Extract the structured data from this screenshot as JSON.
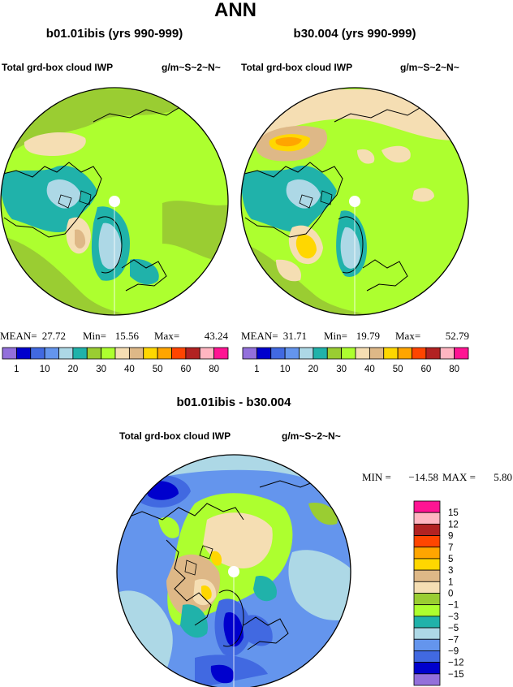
{
  "figure_title": "ANN",
  "chart_data": [
    {
      "type": "heatmap",
      "projection": "north polar stereographic",
      "title": "b01.01ibis (yrs 990-999)",
      "variable": "Total grd-box cloud IWP",
      "units": "g/m~S~2~N~",
      "stats": {
        "mean_label": "MEAN=",
        "mean": "27.72",
        "min_label": "Min=",
        "min": "15.56",
        "max_label": "Max=",
        "max": "43.24"
      },
      "contour_levels": [
        1,
        5,
        10,
        15,
        20,
        25,
        30,
        35,
        40,
        45,
        50,
        55,
        60,
        70,
        80
      ],
      "colorbar_tick_labels": [
        "1",
        "10",
        "20",
        "30",
        "40",
        "50",
        "60",
        "80"
      ],
      "colorbar_colors": [
        "#9370db",
        "#0000cd",
        "#4169e1",
        "#6495ed",
        "#add8e6",
        "#20b2aa",
        "#9acd32",
        "#adff2f",
        "#f5deb3",
        "#deb887",
        "#ffd700",
        "#ffa500",
        "#ff4500",
        "#b22222",
        "#ffb6c1",
        "#ff1493"
      ]
    },
    {
      "type": "heatmap",
      "projection": "north polar stereographic",
      "title": "b30.004 (yrs 990-999)",
      "variable": "Total grd-box cloud IWP",
      "units": "g/m~S~2~N~",
      "stats": {
        "mean_label": "MEAN=",
        "mean": "31.71",
        "min_label": "Min=",
        "min": "19.79",
        "max_label": "Max=",
        "max": "52.79"
      },
      "contour_levels": [
        1,
        5,
        10,
        15,
        20,
        25,
        30,
        35,
        40,
        45,
        50,
        55,
        60,
        70,
        80
      ],
      "colorbar_tick_labels": [
        "1",
        "10",
        "20",
        "30",
        "40",
        "50",
        "60",
        "80"
      ],
      "colorbar_colors": [
        "#9370db",
        "#0000cd",
        "#4169e1",
        "#6495ed",
        "#add8e6",
        "#20b2aa",
        "#9acd32",
        "#adff2f",
        "#f5deb3",
        "#deb887",
        "#ffd700",
        "#ffa500",
        "#ff4500",
        "#b22222",
        "#ffb6c1",
        "#ff1493"
      ]
    },
    {
      "type": "heatmap",
      "projection": "north polar stereographic",
      "title": "b01.01ibis - b30.004",
      "variable": "Total grd-box cloud IWP",
      "units": "g/m~S~2~N~",
      "stats": {
        "min_label": "MIN =",
        "min": "−14.58",
        "max_label": "MAX =",
        "max": "5.80"
      },
      "contour_levels": [
        -15,
        -12,
        -9,
        -7,
        -5,
        -3,
        -1,
        0,
        1,
        3,
        5,
        7,
        9,
        12,
        15
      ],
      "colorbar_tick_labels": [
        "15",
        "12",
        "9",
        "7",
        "5",
        "3",
        "1",
        "0",
        "−1",
        "−3",
        "−5",
        "−7",
        "−9",
        "−12",
        "−15"
      ],
      "colorbar_colors": [
        "#ff1493",
        "#ffb6c1",
        "#b22222",
        "#ff4500",
        "#ffa500",
        "#ffd700",
        "#deb887",
        "#f5deb3",
        "#9acd32",
        "#adff2f",
        "#20b2aa",
        "#add8e6",
        "#6495ed",
        "#4169e1",
        "#0000cd",
        "#9370db"
      ]
    }
  ]
}
